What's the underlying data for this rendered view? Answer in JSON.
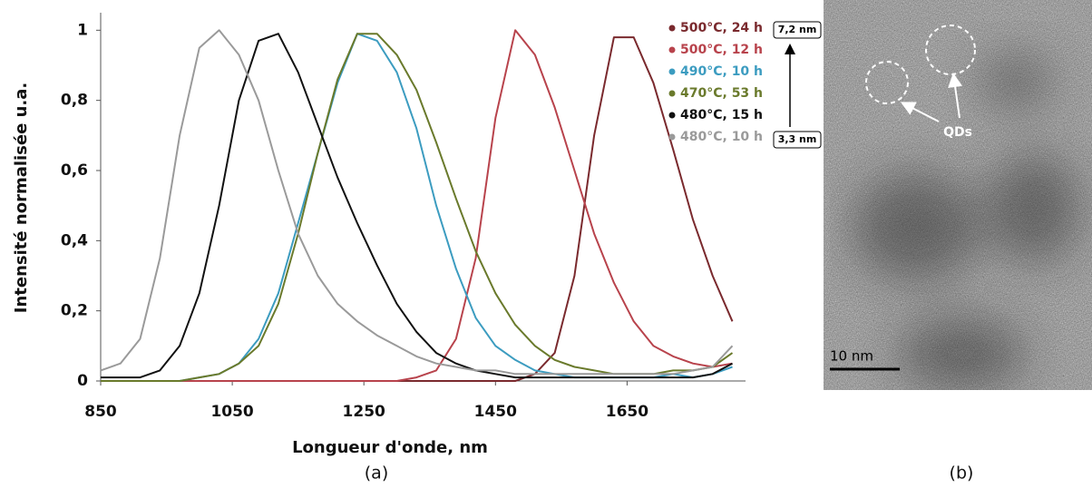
{
  "chart_data": {
    "type": "line",
    "panel_label": "(a)",
    "xlabel": "Longueur d'onde, nm",
    "ylabel": "Intensité normalisée u.a.",
    "x": [
      850,
      880,
      910,
      940,
      970,
      1000,
      1030,
      1060,
      1090,
      1120,
      1150,
      1180,
      1210,
      1240,
      1270,
      1300,
      1330,
      1360,
      1390,
      1420,
      1450,
      1480,
      1510,
      1540,
      1570,
      1600,
      1630,
      1660,
      1690,
      1720,
      1750,
      1780,
      1810
    ],
    "series": [
      {
        "name": "500°C, 24 h",
        "color": "#7a2a2e",
        "values": [
          0,
          0,
          0,
          0,
          0,
          0,
          0,
          0,
          0,
          0,
          0,
          0,
          0,
          0,
          0,
          0,
          0,
          0,
          0,
          0,
          0,
          0,
          0.02,
          0.08,
          0.3,
          0.7,
          0.98,
          0.98,
          0.85,
          0.66,
          0.46,
          0.3,
          0.17
        ]
      },
      {
        "name": "500°C, 12 h",
        "color": "#b8434c",
        "values": [
          0,
          0,
          0,
          0,
          0,
          0,
          0,
          0,
          0,
          0,
          0,
          0,
          0,
          0,
          0,
          0,
          0.01,
          0.03,
          0.12,
          0.35,
          0.75,
          1.0,
          0.93,
          0.78,
          0.6,
          0.42,
          0.28,
          0.17,
          0.1,
          0.07,
          0.05,
          0.04,
          0.05
        ]
      },
      {
        "name": "490°C, 10 h",
        "color": "#3c9cc0",
        "values": [
          0,
          0,
          0,
          0,
          0,
          0.01,
          0.02,
          0.05,
          0.12,
          0.25,
          0.45,
          0.65,
          0.85,
          0.99,
          0.97,
          0.88,
          0.72,
          0.5,
          0.32,
          0.18,
          0.1,
          0.06,
          0.03,
          0.02,
          0.01,
          0.01,
          0.01,
          0.01,
          0.01,
          0.02,
          0.01,
          0.02,
          0.04
        ]
      },
      {
        "name": "470°C, 53 h",
        "color": "#6a7a2c",
        "values": [
          0,
          0,
          0,
          0,
          0,
          0.01,
          0.02,
          0.05,
          0.1,
          0.22,
          0.42,
          0.65,
          0.86,
          0.99,
          0.99,
          0.93,
          0.83,
          0.68,
          0.52,
          0.37,
          0.25,
          0.16,
          0.1,
          0.06,
          0.04,
          0.03,
          0.02,
          0.02,
          0.02,
          0.03,
          0.03,
          0.04,
          0.08
        ]
      },
      {
        "name": "480°C, 15 h",
        "color": "#111111",
        "values": [
          0.01,
          0.01,
          0.01,
          0.03,
          0.1,
          0.25,
          0.5,
          0.8,
          0.97,
          0.99,
          0.88,
          0.73,
          0.58,
          0.45,
          0.33,
          0.22,
          0.14,
          0.08,
          0.05,
          0.03,
          0.02,
          0.01,
          0.01,
          0.01,
          0.01,
          0.01,
          0.01,
          0.01,
          0.01,
          0.01,
          0.01,
          0.02,
          0.05
        ]
      },
      {
        "name": "480°C, 10 h",
        "color": "#9a9a9a",
        "values": [
          0.03,
          0.05,
          0.12,
          0.35,
          0.7,
          0.95,
          1.0,
          0.93,
          0.8,
          0.6,
          0.42,
          0.3,
          0.22,
          0.17,
          0.13,
          0.1,
          0.07,
          0.05,
          0.04,
          0.03,
          0.03,
          0.02,
          0.02,
          0.02,
          0.02,
          0.02,
          0.02,
          0.02,
          0.02,
          0.02,
          0.03,
          0.04,
          0.1
        ]
      }
    ],
    "size_annotations": [
      "7,2 nm",
      "3,3 nm"
    ],
    "xlim": [
      850,
      1830
    ],
    "xticks": [
      850,
      1050,
      1250,
      1450,
      1650
    ],
    "ylim": [
      0,
      1.05
    ],
    "yticks": [
      0,
      {
        "value": 0.2,
        "label": "0,2"
      },
      {
        "value": 0.4,
        "label": "0,4"
      },
      {
        "value": 0.6,
        "label": "0,6"
      },
      {
        "value": 0.8,
        "label": "0,8"
      },
      1
    ],
    "grid": false,
    "legend": "upper right"
  },
  "image": {
    "panel_label": "(b)",
    "annotation": "QDs",
    "scale_bar": "10 nm"
  }
}
